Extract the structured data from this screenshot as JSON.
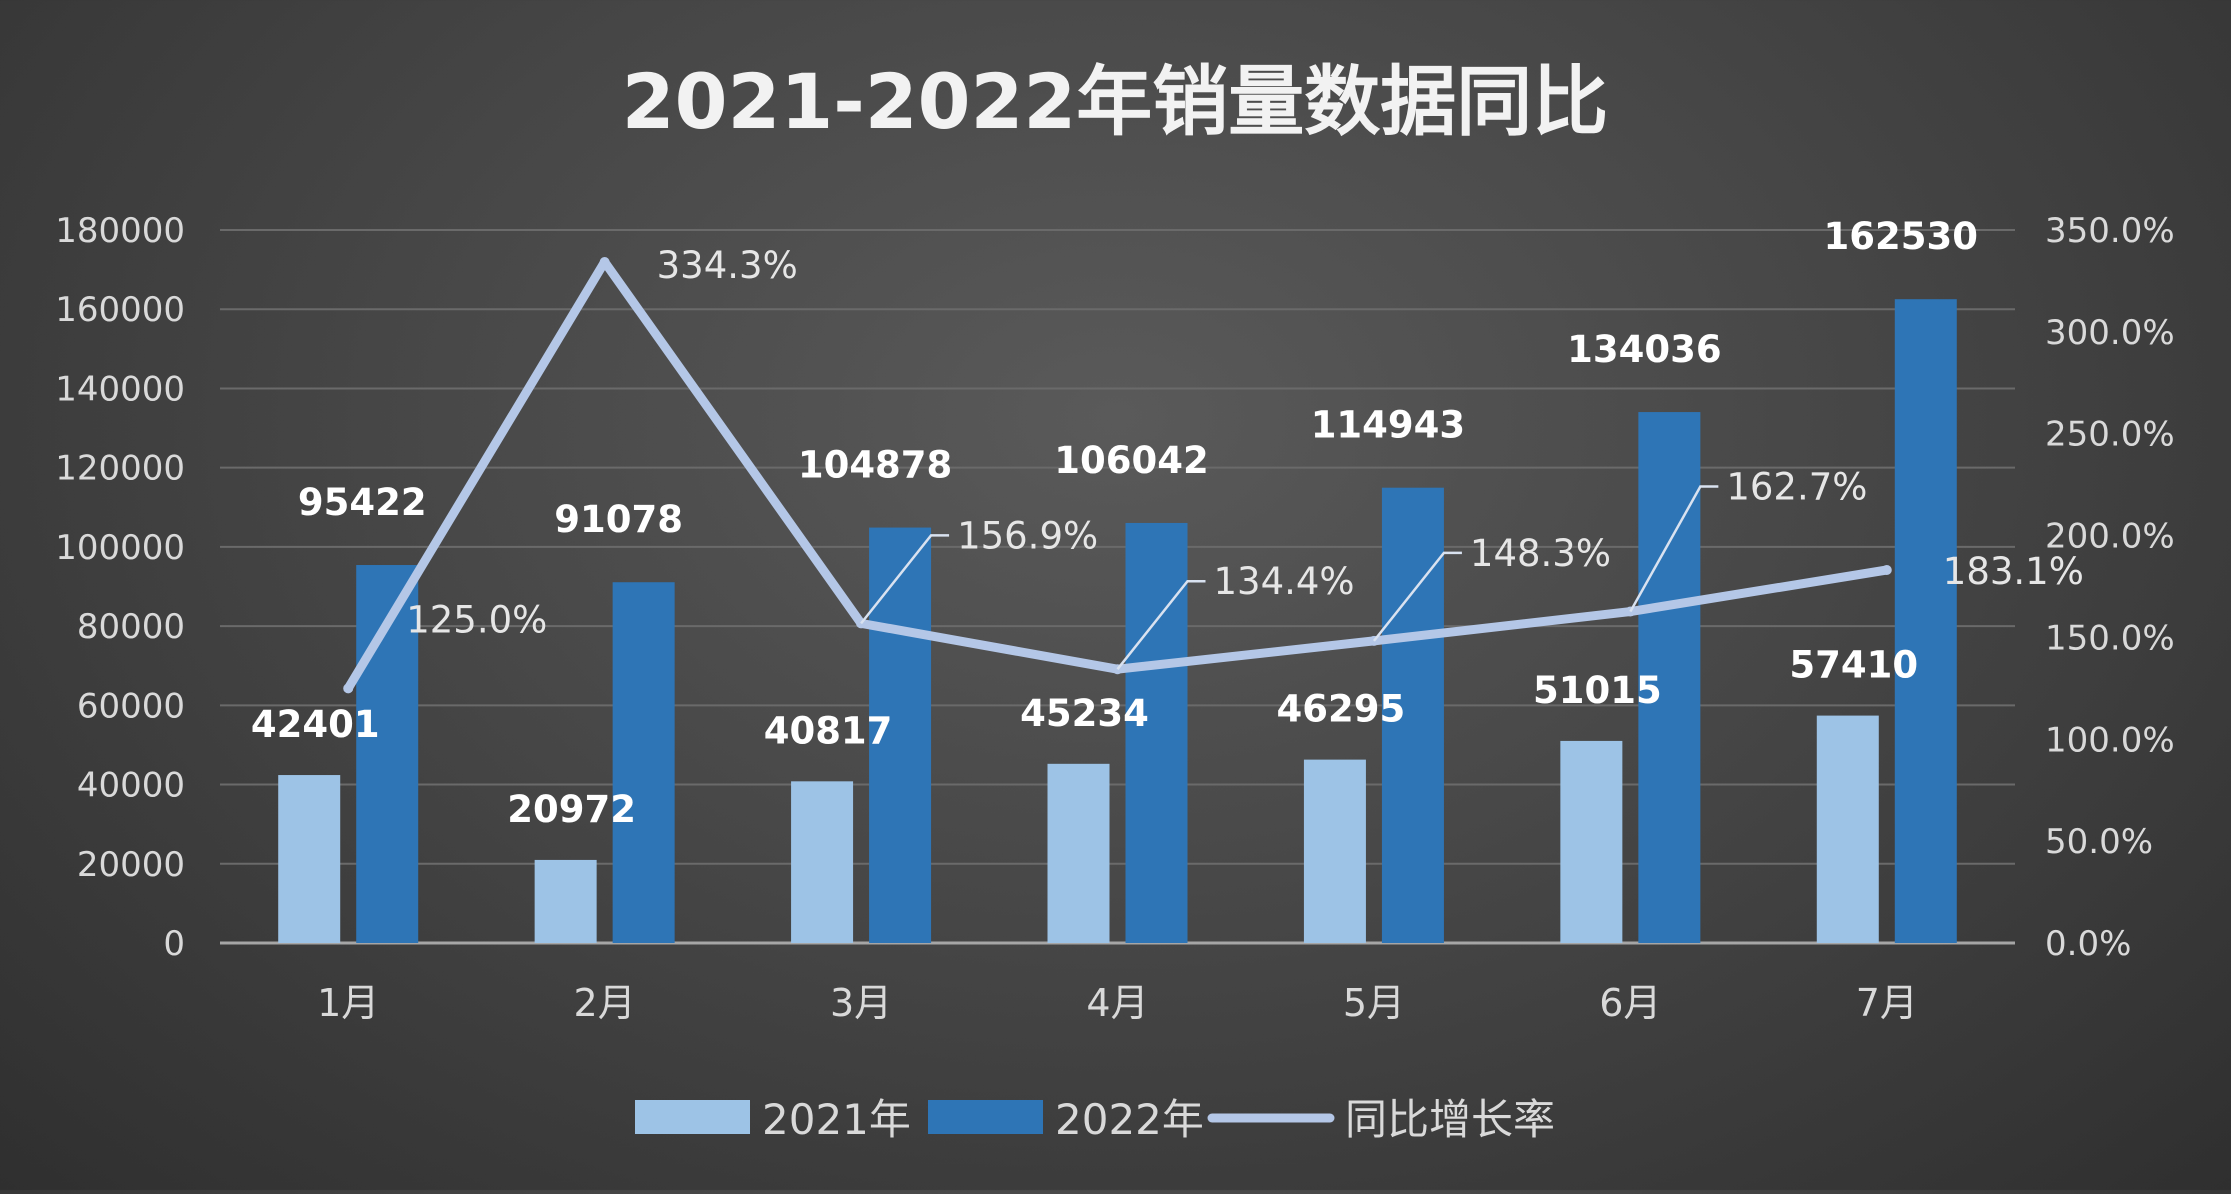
{
  "chart_data": {
    "type": "bar",
    "title": "2021-2022年销量数据同比",
    "categories": [
      "1月",
      "2月",
      "3月",
      "4月",
      "5月",
      "6月",
      "7月"
    ],
    "series": [
      {
        "name": "2021年",
        "type": "bar",
        "axis": "left",
        "color": "#9dc3e6",
        "values": [
          42401,
          20972,
          40817,
          45234,
          46295,
          51015,
          57410
        ]
      },
      {
        "name": "2022年",
        "type": "bar",
        "axis": "left",
        "color": "#2e75b6",
        "values": [
          95422,
          91078,
          104878,
          106042,
          114943,
          134036,
          162530
        ]
      },
      {
        "name": "同比增长率",
        "type": "line",
        "axis": "right",
        "color": "#b4c7e7",
        "values": [
          125.0,
          334.3,
          156.9,
          134.4,
          148.3,
          162.7,
          183.1
        ],
        "labels": [
          "125.0%",
          "334.3%",
          "156.9%",
          "134.4%",
          "148.3%",
          "162.7%",
          "183.1%"
        ]
      }
    ],
    "y_left": {
      "min": 0,
      "max": 180000,
      "step": 20000,
      "ticks": [
        "0",
        "20000",
        "40000",
        "60000",
        "80000",
        "100000",
        "120000",
        "140000",
        "160000",
        "180000"
      ]
    },
    "y_right": {
      "min": 0,
      "max": 350,
      "step": 50,
      "ticks": [
        "0.0%",
        "50.0%",
        "100.0%",
        "150.0%",
        "200.0%",
        "250.0%",
        "300.0%",
        "350.0%"
      ]
    },
    "grid": true,
    "legend": "bottom"
  },
  "colors": {
    "background": "#474747",
    "gridline": "#6a6a6a",
    "axis": "#a6a6a6"
  }
}
